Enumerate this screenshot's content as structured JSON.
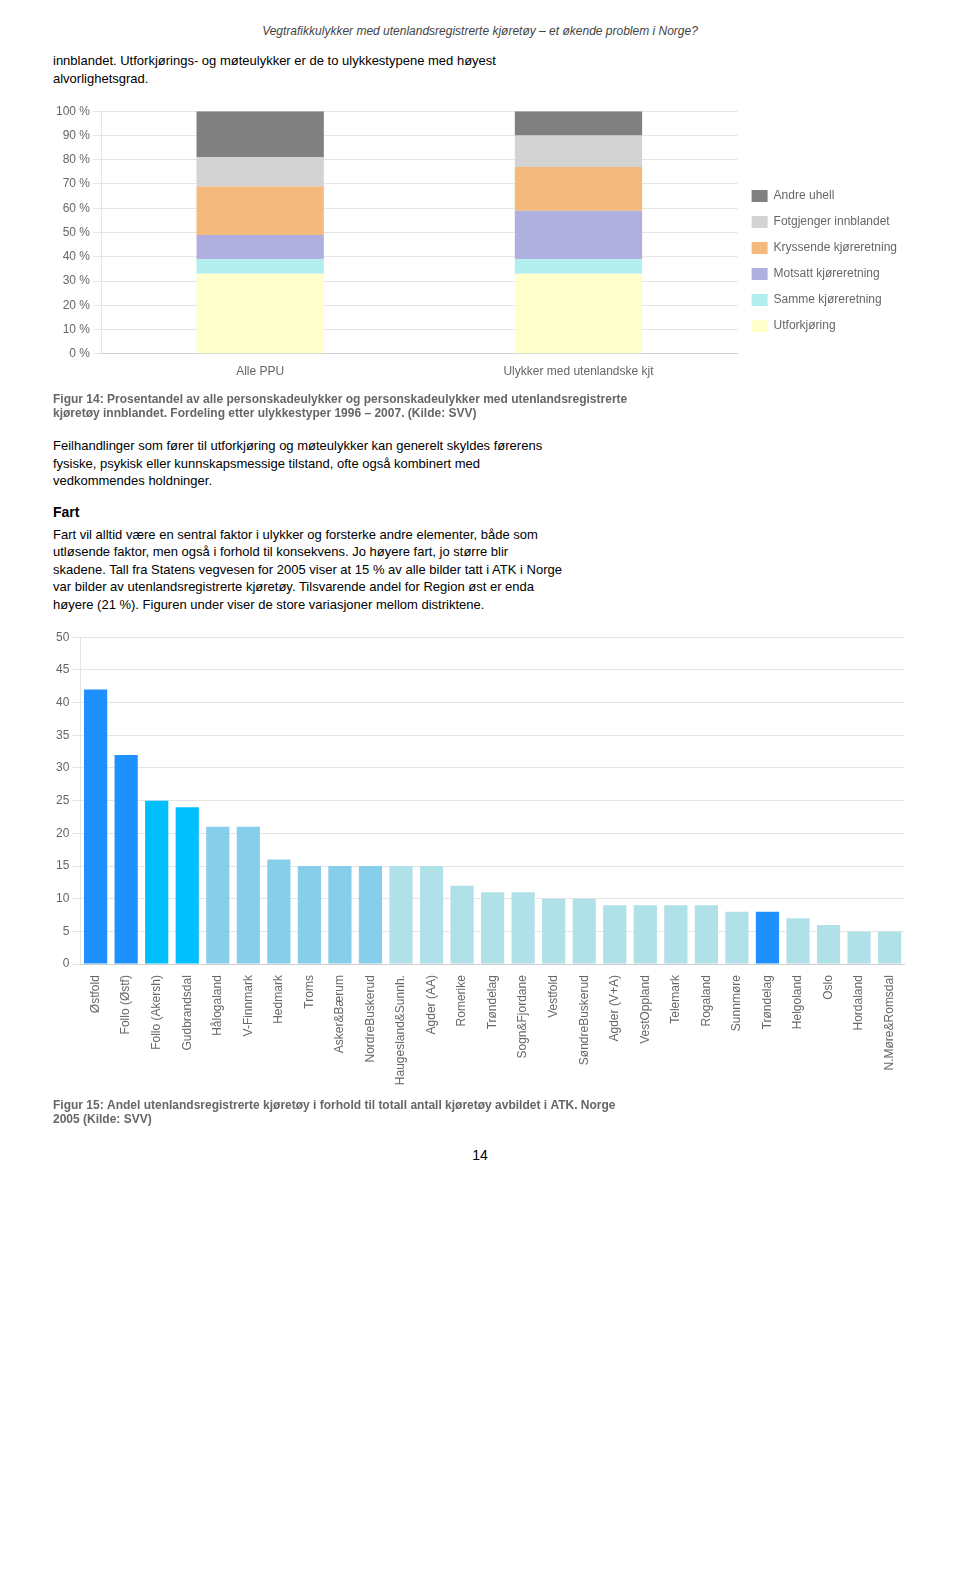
{
  "header_text": "Vegtrafikkulykker med utenlandsregistrerte kjøretøy – et økende problem i Norge?",
  "intro_text": "innblandet. Utforkjørings- og møteulykker er de to ulykkestypene med høyest\nalvorlighetsgrad.",
  "body_text1": "Feilhandlinger som fører til utforkjøring og møteulykker kan generelt skyldes førerens\nfysiske, psykisk eller kunnskapsmessige tilstand, ofte også kombinert med\nvedkommendes holdninger.",
  "heading2": "Fart",
  "body_text2": "Fart vil alltid være en sentral faktor i ulykker og forsterke andre elementer, både som\nutløsende faktor, men også i forhold til konsekvens. Jo høyere fart, jo større blir\nskadene. Tall fra Statens vegvesen for 2005 viser at 15 % av alle bilder tatt i ATK i Norge\nvar bilder av utenlandsregistrerte kjøretøy. Tilsvarende andel for Region øst er enda\nhøyere (21 %). Figuren under viser de store variasjoner mellom distriktene.",
  "page_number": "14",
  "chart_data": [
    {
      "type": "bar",
      "title": "Figur 14: Prosentandel av alle personskadeulykker og personskadeulykker med utenlandsregistrerte\nkjøretøy innblandet. Fordeling etter ulykkestyper 1996 – 2007. (Kilde: SVV)",
      "categories": [
        "Alle PPU",
        "Ulykker med utenlandske kjt"
      ],
      "series": [
        {
          "name": "Utforkjøring",
          "color": "#ffffcc",
          "values": [
            33,
            33
          ]
        },
        {
          "name": "Samme kjøreretning",
          "color": "#b2eeee",
          "values": [
            6,
            6
          ]
        },
        {
          "name": "Motsatt kjøreretning",
          "color": "#b0b0e0",
          "values": [
            10,
            20
          ]
        },
        {
          "name": "Kryssende kjøreretning",
          "color": "#f4b97c",
          "values": [
            20,
            18
          ]
        },
        {
          "name": "Fotgjenger innblandet",
          "color": "#d3d3d3",
          "values": [
            12,
            13
          ]
        },
        {
          "name": "Andre uhell",
          "color": "#808080",
          "values": [
            19,
            10
          ]
        }
      ],
      "stacked": true,
      "legend": "right",
      "ylim": [
        0,
        100
      ],
      "yticks": [
        {
          "value": 0,
          "label": "0 %"
        },
        {
          "value": 10,
          "label": "10 %"
        },
        {
          "value": 20,
          "label": "20 %"
        },
        {
          "value": 30,
          "label": "30 %"
        },
        {
          "value": 40,
          "label": "40 %"
        },
        {
          "value": 50,
          "label": "50 %"
        },
        {
          "value": 60,
          "label": "60 %"
        },
        {
          "value": 70,
          "label": "70 %"
        },
        {
          "value": 80,
          "label": "80 %"
        },
        {
          "value": 90,
          "label": "90 %"
        },
        {
          "value": 100,
          "label": "100 %"
        }
      ],
      "grid": true
    },
    {
      "type": "bar",
      "title": "Figur 15: Andel utenlandsregistrerte kjøretøy i forhold til totall antall kjøretøy avbildet i ATK. Norge\n2005 (Kilde: SVV)",
      "categories": [
        "Østfold",
        "Follo (Østf)",
        "Follo (Akersh)",
        "Gudbrandsdal",
        "Hålogaland",
        "V-Finnmark",
        "Hedmark",
        "Troms",
        "Asker&Bærum",
        "NordreBuskerud",
        "Haugesland&Sunnh.",
        "Agder (AA)",
        "Romerike",
        "Trøndelag",
        "Sogn&Fjordane",
        "Vestfold",
        "SøndreBuskerud",
        "Agder (V+A)",
        "VestOppland",
        "Telemark",
        "Rogaland",
        "Sunnmøre",
        "Trøndelag",
        "Helgoland",
        "Oslo",
        "Hordaland",
        "N.Møre&Romsdal"
      ],
      "values": [
        42,
        32,
        25,
        24,
        21,
        21,
        16,
        15,
        15,
        15,
        15,
        15,
        12,
        11,
        11,
        10,
        10,
        9,
        9,
        9,
        9,
        8,
        8,
        7,
        6,
        5,
        5
      ],
      "colors": [
        "#1e90ff",
        "#1e90ff",
        "#00bfff",
        "#00bfff",
        "#87ceeb",
        "#87ceeb",
        "#87ceeb",
        "#87ceeb",
        "#87ceeb",
        "#87ceeb",
        "#b0e0e8",
        "#b0e0e8",
        "#b0e0e8",
        "#b0e0e8",
        "#b0e0e8",
        "#b0e0e8",
        "#b0e0e8",
        "#b0e0e8",
        "#b0e0e8",
        "#b0e0e8",
        "#b0e0e8",
        "#b0e0e8",
        "#1e90ff",
        "#b0e0e8",
        "#b0e0e8",
        "#b0e0e8",
        "#b0e0e8"
      ],
      "ylim": [
        0,
        50
      ],
      "yticks": [
        0,
        5,
        10,
        15,
        20,
        25,
        30,
        35,
        40,
        45,
        50
      ],
      "grid": true
    }
  ]
}
